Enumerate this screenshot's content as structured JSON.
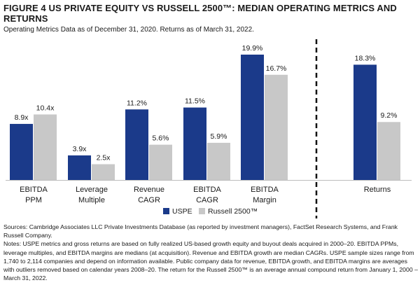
{
  "title": "FIGURE 4 US PRIVATE EQUITY VS RUSSELL 2500™: MEDIAN OPERATING METRICS AND RETURNS",
  "subtitle": "Operating Metrics Data as of December 31, 2020. Returns as of March 31, 2022.",
  "colors": {
    "uspe": "#1b3a8a",
    "russell": "#c8c8c8",
    "divider": "#111111"
  },
  "chart_data": {
    "type": "bar",
    "categories": [
      [
        "EBITDA",
        "PPM"
      ],
      [
        "Leverage",
        "Multiple"
      ],
      [
        "Revenue",
        "CAGR"
      ],
      [
        "EBITDA",
        "CAGR"
      ],
      [
        "EBITDA",
        "Margin"
      ],
      [
        "Returns"
      ]
    ],
    "series": [
      {
        "name": "USPE",
        "values": [
          8.9,
          3.9,
          11.2,
          11.5,
          19.9,
          18.3
        ],
        "labels": [
          "8.9x",
          "3.9x",
          "11.2%",
          "11.5%",
          "19.9%",
          "18.3%"
        ]
      },
      {
        "name": "Russell 2500™",
        "values": [
          10.4,
          2.5,
          5.6,
          5.9,
          16.7,
          9.2
        ],
        "labels": [
          "10.4x",
          "2.5x",
          "5.6%",
          "5.9%",
          "16.7%",
          "9.2%"
        ]
      }
    ],
    "ylim": [
      0,
      21
    ],
    "grid": false,
    "divider_after_category": 5,
    "legend_position": "bottom-center"
  },
  "footnotes": [
    "Sources: Cambridge Associates LLC Private Investments Database (as reported by investment managers), FactSet Research Systems, and Frank Russell Company.",
    "Notes: USPE metrics and gross returns are based on fully realized US-based growth equity and buyout deals acquired in 2000–20. EBITDA PPMs, leverage multiples, and EBITDA margins are medians (at acquisition). Revenue and EBITDA growth are median CAGRs. USPE sample sizes range from 1,740 to 2,114 companies and depend on information available. Public company data for revenue, EBITDA growth, and EBITDA margins are averages with outliers removed based on calendar years 2008–20. The return for the Russell 2500™ is an average annual compound return from January 1, 2000 – March 31, 2022."
  ]
}
